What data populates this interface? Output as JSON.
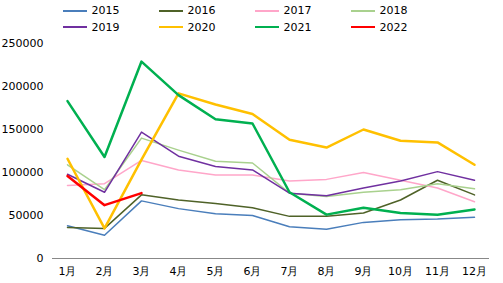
{
  "chart_data": {
    "type": "line",
    "categories": [
      "1月",
      "2月",
      "3月",
      "4月",
      "5月",
      "6月",
      "7月",
      "8月",
      "9月",
      "10月",
      "11月",
      "12月"
    ],
    "series": [
      {
        "name": "2015",
        "color": "#4a7ebb",
        "values": [
          38000,
          27000,
          67000,
          58000,
          52000,
          50000,
          37000,
          34000,
          42000,
          45000,
          46000,
          48000
        ]
      },
      {
        "name": "2016",
        "color": "#4f6228",
        "values": [
          36000,
          35000,
          74000,
          68000,
          64000,
          59000,
          49000,
          49000,
          53000,
          68000,
          91000,
          74000
        ]
      },
      {
        "name": "2017",
        "color": "#ffa6c9",
        "values": [
          85000,
          87000,
          114000,
          103000,
          97000,
          97000,
          90000,
          92000,
          100000,
          91000,
          82000,
          66000
        ]
      },
      {
        "name": "2018",
        "color": "#a9d18e",
        "values": [
          109000,
          80000,
          140000,
          126000,
          113000,
          111000,
          76000,
          72000,
          77000,
          80000,
          87000,
          81000
        ]
      },
      {
        "name": "2019",
        "color": "#7030a0",
        "values": [
          98000,
          77000,
          147000,
          119000,
          107000,
          103000,
          76000,
          73000,
          82000,
          90000,
          101000,
          91000
        ]
      },
      {
        "name": "2020",
        "color": "#ffc000",
        "values": [
          116000,
          35000,
          115000,
          192000,
          179000,
          168000,
          138000,
          129000,
          150000,
          137000,
          135000,
          109000
        ]
      },
      {
        "name": "2021",
        "color": "#00b050",
        "values": [
          183000,
          118000,
          229000,
          190000,
          162000,
          157000,
          77000,
          51000,
          59000,
          53000,
          51000,
          57000
        ]
      },
      {
        "name": "2022",
        "color": "#ff0000",
        "values": [
          96000,
          62000,
          76000,
          null,
          null,
          null,
          null,
          null,
          null,
          null,
          null,
          null
        ]
      }
    ],
    "ylim": [
      0,
      250000
    ],
    "yticks": [
      0,
      50000,
      100000,
      150000,
      200000,
      250000
    ],
    "legend": "top",
    "grid": false
  }
}
